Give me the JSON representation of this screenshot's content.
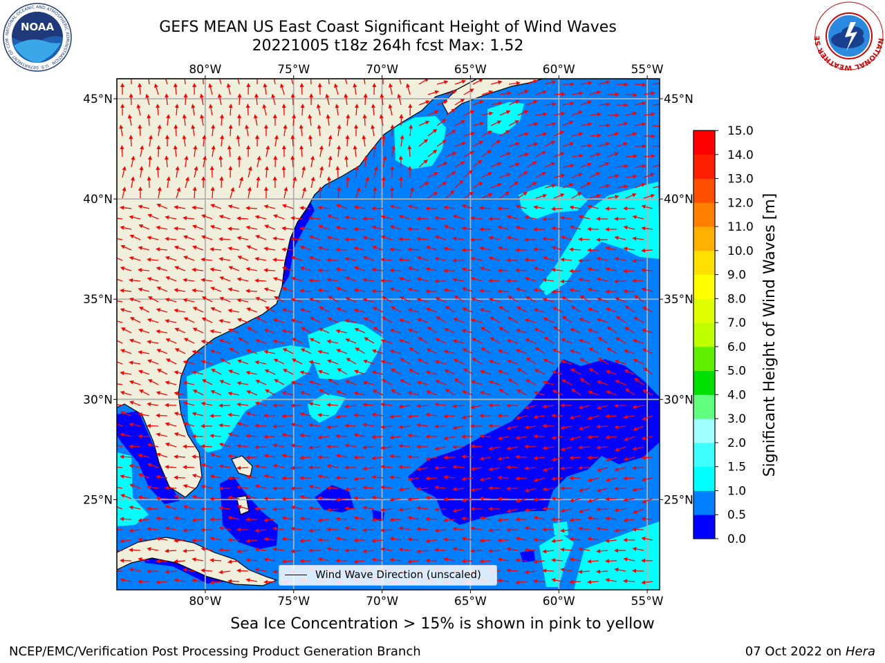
{
  "header": {
    "title_line1": "GEFS MEAN US East Coast Significant Height of Wind Waves",
    "title_line2": "20221005 t18z 264h fcst   Max: 1.52"
  },
  "logos": {
    "noaa_text": "NOAA",
    "noaa_ring_text": "NATIONAL OCEANIC AND ATMOSPHERIC ADMINISTRATION · U.S. DEPARTMENT OF COMMERCE",
    "nws_ring_text": "NATIONAL WEATHER SERVICE"
  },
  "map": {
    "projection": "equirectangular",
    "lon_range": [
      -85,
      -54.3
    ],
    "lat_range": [
      20.5,
      46
    ],
    "lon_ticks": [
      {
        "value": -80,
        "label": "80°W"
      },
      {
        "value": -75,
        "label": "75°W"
      },
      {
        "value": -70,
        "label": "70°W"
      },
      {
        "value": -65,
        "label": "65°W"
      },
      {
        "value": -60,
        "label": "60°W"
      },
      {
        "value": -55,
        "label": "55°W"
      }
    ],
    "lat_ticks": [
      {
        "value": 45,
        "label": "45°N"
      },
      {
        "value": 40,
        "label": "40°N"
      },
      {
        "value": 35,
        "label": "35°N"
      },
      {
        "value": 30,
        "label": "30°N"
      },
      {
        "value": 25,
        "label": "25°N"
      }
    ],
    "gridlines": true,
    "colors": {
      "land": "#efefdc",
      "ocean_default": "#0080ff",
      "coastline": "#000000",
      "gridline": "#b0b0b0",
      "arrow": "#ff0000"
    },
    "legend_label": "Wind Wave Direction (unscaled)",
    "legend_placement": "bottom-center"
  },
  "colorbar": {
    "label": "Significant Height of Wind Waves [m]",
    "bins": [
      {
        "lo": 0.0,
        "hi": 0.5,
        "color": "#0000ff"
      },
      {
        "lo": 0.5,
        "hi": 1.0,
        "color": "#0080ff"
      },
      {
        "lo": 1.0,
        "hi": 1.5,
        "color": "#00ffff"
      },
      {
        "lo": 1.5,
        "hi": 2.0,
        "color": "#40ffff"
      },
      {
        "lo": 2.0,
        "hi": 3.0,
        "color": "#a0ffff"
      },
      {
        "lo": 3.0,
        "hi": 4.0,
        "color": "#60ff80"
      },
      {
        "lo": 4.0,
        "hi": 5.0,
        "color": "#00e000"
      },
      {
        "lo": 5.0,
        "hi": 6.0,
        "color": "#60f000"
      },
      {
        "lo": 6.0,
        "hi": 7.0,
        "color": "#c0ff00"
      },
      {
        "lo": 7.0,
        "hi": 8.0,
        "color": "#e0ff00"
      },
      {
        "lo": 8.0,
        "hi": 9.0,
        "color": "#ffff00"
      },
      {
        "lo": 9.0,
        "hi": 10.0,
        "color": "#ffe000"
      },
      {
        "lo": 10.0,
        "hi": 11.0,
        "color": "#ffb000"
      },
      {
        "lo": 11.0,
        "hi": 12.0,
        "color": "#ff8000"
      },
      {
        "lo": 12.0,
        "hi": 13.0,
        "color": "#ff5000"
      },
      {
        "lo": 13.0,
        "hi": 14.0,
        "color": "#ff2000"
      },
      {
        "lo": 14.0,
        "hi": 15.0,
        "color": "#ff0000"
      }
    ],
    "tick_labels": [
      "0.0",
      "0.5",
      "1.0",
      "1.5",
      "2.0",
      "3.0",
      "4.0",
      "5.0",
      "6.0",
      "7.0",
      "8.0",
      "9.0",
      "10.0",
      "11.0",
      "12.0",
      "13.0",
      "14.0",
      "15.0"
    ]
  },
  "subtitle": "Sea Ice Concentration > 15% is shown in pink to yellow",
  "footer": {
    "left": "NCEP/EMC/Verification Post Processing Product Generation Branch",
    "date": "07 Oct 2022 on ",
    "machine": "Hera"
  }
}
